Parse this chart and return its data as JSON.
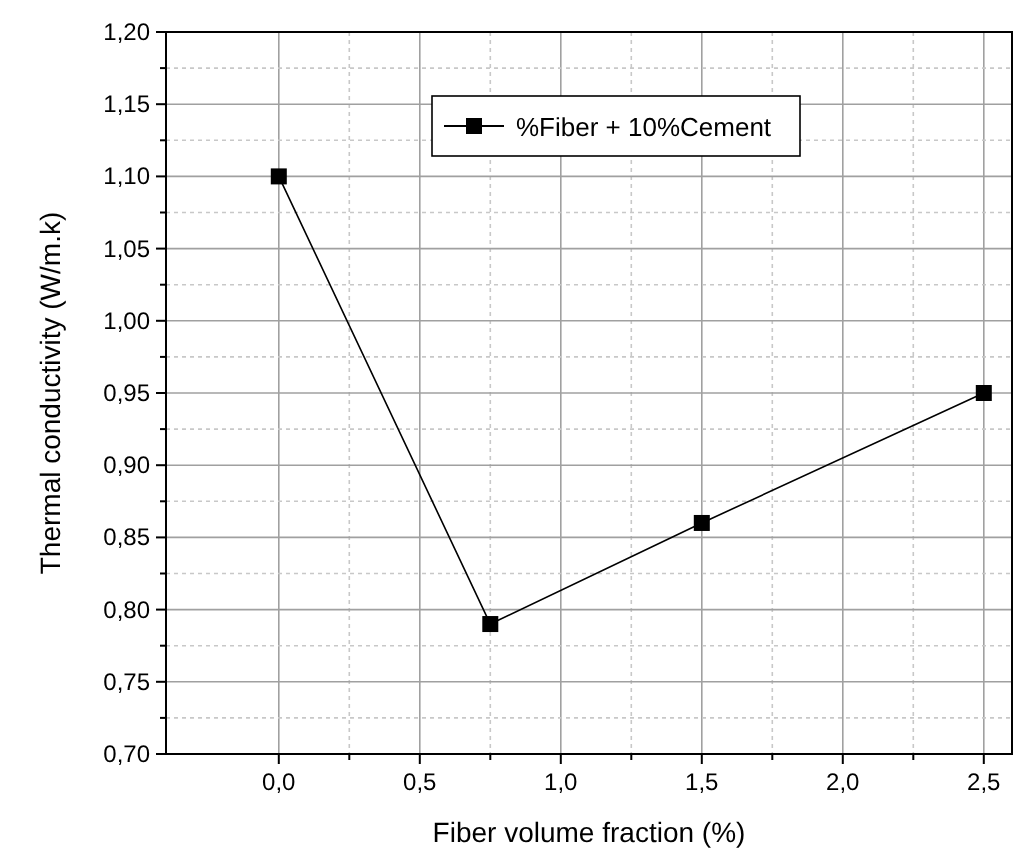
{
  "chart_data": {
    "type": "line",
    "xlabel": "Fiber volume fraction (%)",
    "ylabel": "Thermal conductivity (W/m.k)",
    "x": [
      0,
      0.75,
      1.5,
      2.5
    ],
    "series": [
      {
        "name": "%Fiber  + 10%Cement",
        "color": "#000000",
        "values": [
          1.1,
          0.79,
          0.86,
          0.95
        ]
      }
    ],
    "xlim": [
      -0.4,
      2.6
    ],
    "xticks": [
      {
        "value": 0,
        "label": "0,0"
      },
      {
        "value": 0.25,
        "label": null
      },
      {
        "value": 0.5,
        "label": "0,5"
      },
      {
        "value": 0.75,
        "label": null
      },
      {
        "value": 1,
        "label": "1,0"
      },
      {
        "value": 1.25,
        "label": null
      },
      {
        "value": 1.5,
        "label": "1,5"
      },
      {
        "value": 1.75,
        "label": null
      },
      {
        "value": 2,
        "label": "2,0"
      },
      {
        "value": 2.25,
        "label": null
      },
      {
        "value": 2.5,
        "label": "2,5"
      }
    ],
    "ylim": [
      0.7,
      1.2
    ],
    "yticks": [
      {
        "value": 0.7,
        "label": "0,70"
      },
      {
        "value": 0.725,
        "label": null
      },
      {
        "value": 0.75,
        "label": "0,75"
      },
      {
        "value": 0.775,
        "label": null
      },
      {
        "value": 0.8,
        "label": "0,80"
      },
      {
        "value": 0.825,
        "label": null
      },
      {
        "value": 0.85,
        "label": "0,85"
      },
      {
        "value": 0.875,
        "label": null
      },
      {
        "value": 0.9,
        "label": "0,90"
      },
      {
        "value": 0.925,
        "label": null
      },
      {
        "value": 0.95,
        "label": "0,95"
      },
      {
        "value": 0.975,
        "label": null
      },
      {
        "value": 1,
        "label": "1,00"
      },
      {
        "value": 1.025,
        "label": null
      },
      {
        "value": 1.05,
        "label": "1,05"
      },
      {
        "value": 1.075,
        "label": null
      },
      {
        "value": 1.1,
        "label": "1,10"
      },
      {
        "value": 1.125,
        "label": null
      },
      {
        "value": 1.15,
        "label": "1,15"
      },
      {
        "value": 1.175,
        "label": null
      },
      {
        "value": 1.2,
        "label": "1,20"
      }
    ],
    "grid": true,
    "legend": "top right",
    "marker": "square",
    "line_style": "solid"
  }
}
